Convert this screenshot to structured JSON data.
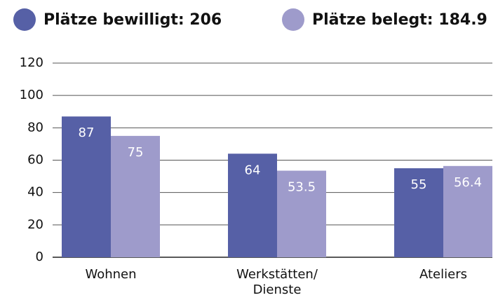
{
  "chart_data": {
    "type": "bar",
    "categories": [
      "Wohnen",
      "Werkstätten/\nDienste",
      "Ateliers"
    ],
    "series": [
      {
        "name": "Plätze bewilligt: 206",
        "color": "#5660a6",
        "values": [
          87,
          64,
          55
        ]
      },
      {
        "name": "Plätze belegt: 184.9",
        "color": "#9e9bcb",
        "values": [
          75,
          53.5,
          56.4
        ]
      }
    ],
    "ylim": [
      0,
      120
    ],
    "yticks": [
      0,
      20,
      40,
      60,
      80,
      100,
      120
    ],
    "grid": true
  }
}
